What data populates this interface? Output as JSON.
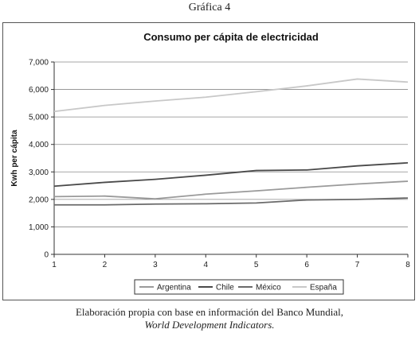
{
  "figure_label": "Gráfica 4",
  "caption_line1": "Elaboración propia con base en información del Banco Mundial,",
  "caption_line2": "World Development Indicators.",
  "chart_data": {
    "type": "line",
    "title": "Consumo per cápita de electricidad",
    "xlabel": "",
    "ylabel": "Kwh per cápita",
    "x": [
      1,
      2,
      3,
      4,
      5,
      6,
      7,
      8
    ],
    "x_tick_labels": [
      "1",
      "2",
      "3",
      "4",
      "5",
      "6",
      "7",
      "8"
    ],
    "ylim": [
      0,
      7000
    ],
    "y_ticks": [
      0,
      1000,
      2000,
      3000,
      4000,
      5000,
      6000,
      7000
    ],
    "y_tick_labels": [
      "0",
      "1,000",
      "2,000",
      "3,000",
      "4,000",
      "5,000",
      "6,000",
      "7,000"
    ],
    "grid": "horizontal",
    "legend_position": "bottom",
    "series": [
      {
        "name": "Argentina",
        "color": "#9a9a9a",
        "values": [
          2100,
          2120,
          2020,
          2190,
          2310,
          2440,
          2560,
          2660
        ]
      },
      {
        "name": "Chile",
        "color": "#4a4a4a",
        "values": [
          2480,
          2620,
          2730,
          2880,
          3050,
          3070,
          3220,
          3330
        ]
      },
      {
        "name": "México",
        "color": "#6a6a6a",
        "values": [
          1800,
          1800,
          1830,
          1840,
          1870,
          1980,
          2000,
          2050
        ]
      },
      {
        "name": "España",
        "color": "#c8c8c8",
        "values": [
          5200,
          5420,
          5580,
          5720,
          5920,
          6130,
          6380,
          6270
        ]
      }
    ]
  }
}
